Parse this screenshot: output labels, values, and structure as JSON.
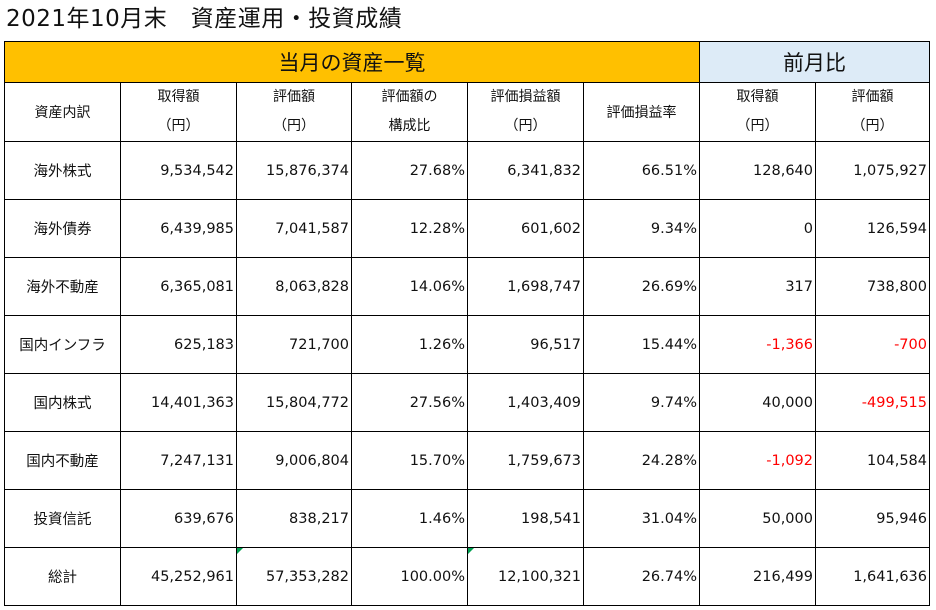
{
  "title": "2021年10月末　資産運用・投資成績",
  "bands": {
    "current": "当月の資産一覧",
    "previous": "前月比"
  },
  "headers": [
    {
      "l1": "資産内訳",
      "l2": ""
    },
    {
      "l1": "取得額",
      "l2": "（円）"
    },
    {
      "l1": "評価額",
      "l2": "（円）"
    },
    {
      "l1": "評価額の",
      "l2": "構成比"
    },
    {
      "l1": "評価損益額",
      "l2": "（円）"
    },
    {
      "l1": "評価損益率",
      "l2": ""
    },
    {
      "l1": "取得額",
      "l2": "（円）"
    },
    {
      "l1": "評価額",
      "l2": "（円）"
    }
  ],
  "rows": [
    {
      "name": "海外株式",
      "acq": "9,534,542",
      "val": "15,876,374",
      "ratio": "27.68%",
      "pl": "6,341,832",
      "plr": "66.51%",
      "d_acq": "128,640",
      "d_val": "1,075,927"
    },
    {
      "name": "海外債券",
      "acq": "6,439,985",
      "val": "7,041,587",
      "ratio": "12.28%",
      "pl": "601,602",
      "plr": "9.34%",
      "d_acq": "0",
      "d_val": "126,594"
    },
    {
      "name": "海外不動産",
      "acq": "6,365,081",
      "val": "8,063,828",
      "ratio": "14.06%",
      "pl": "1,698,747",
      "plr": "26.69%",
      "d_acq": "317",
      "d_val": "738,800"
    },
    {
      "name": "国内インフラ",
      "acq": "625,183",
      "val": "721,700",
      "ratio": "1.26%",
      "pl": "96,517",
      "plr": "15.44%",
      "d_acq": "-1,366",
      "d_val": "-700"
    },
    {
      "name": "国内株式",
      "acq": "14,401,363",
      "val": "15,804,772",
      "ratio": "27.56%",
      "pl": "1,403,409",
      "plr": "9.74%",
      "d_acq": "40,000",
      "d_val": "-499,515"
    },
    {
      "name": "国内不動産",
      "acq": "7,247,131",
      "val": "9,006,804",
      "ratio": "15.70%",
      "pl": "1,759,673",
      "plr": "24.28%",
      "d_acq": "-1,092",
      "d_val": "104,584"
    },
    {
      "name": "投資信託",
      "acq": "639,676",
      "val": "838,217",
      "ratio": "1.46%",
      "pl": "198,541",
      "plr": "31.04%",
      "d_acq": "50,000",
      "d_val": "95,946"
    }
  ],
  "total": {
    "name": "総計",
    "acq": "45,252,961",
    "val": "57,353,282",
    "ratio": "100.00%",
    "pl": "12,100,321",
    "plr": "26.74%",
    "d_acq": "216,499",
    "d_val": "1,641,636"
  },
  "colors": {
    "current_band": "#ffc000",
    "previous_band": "#ddebf7",
    "negative": "#ff0000"
  }
}
